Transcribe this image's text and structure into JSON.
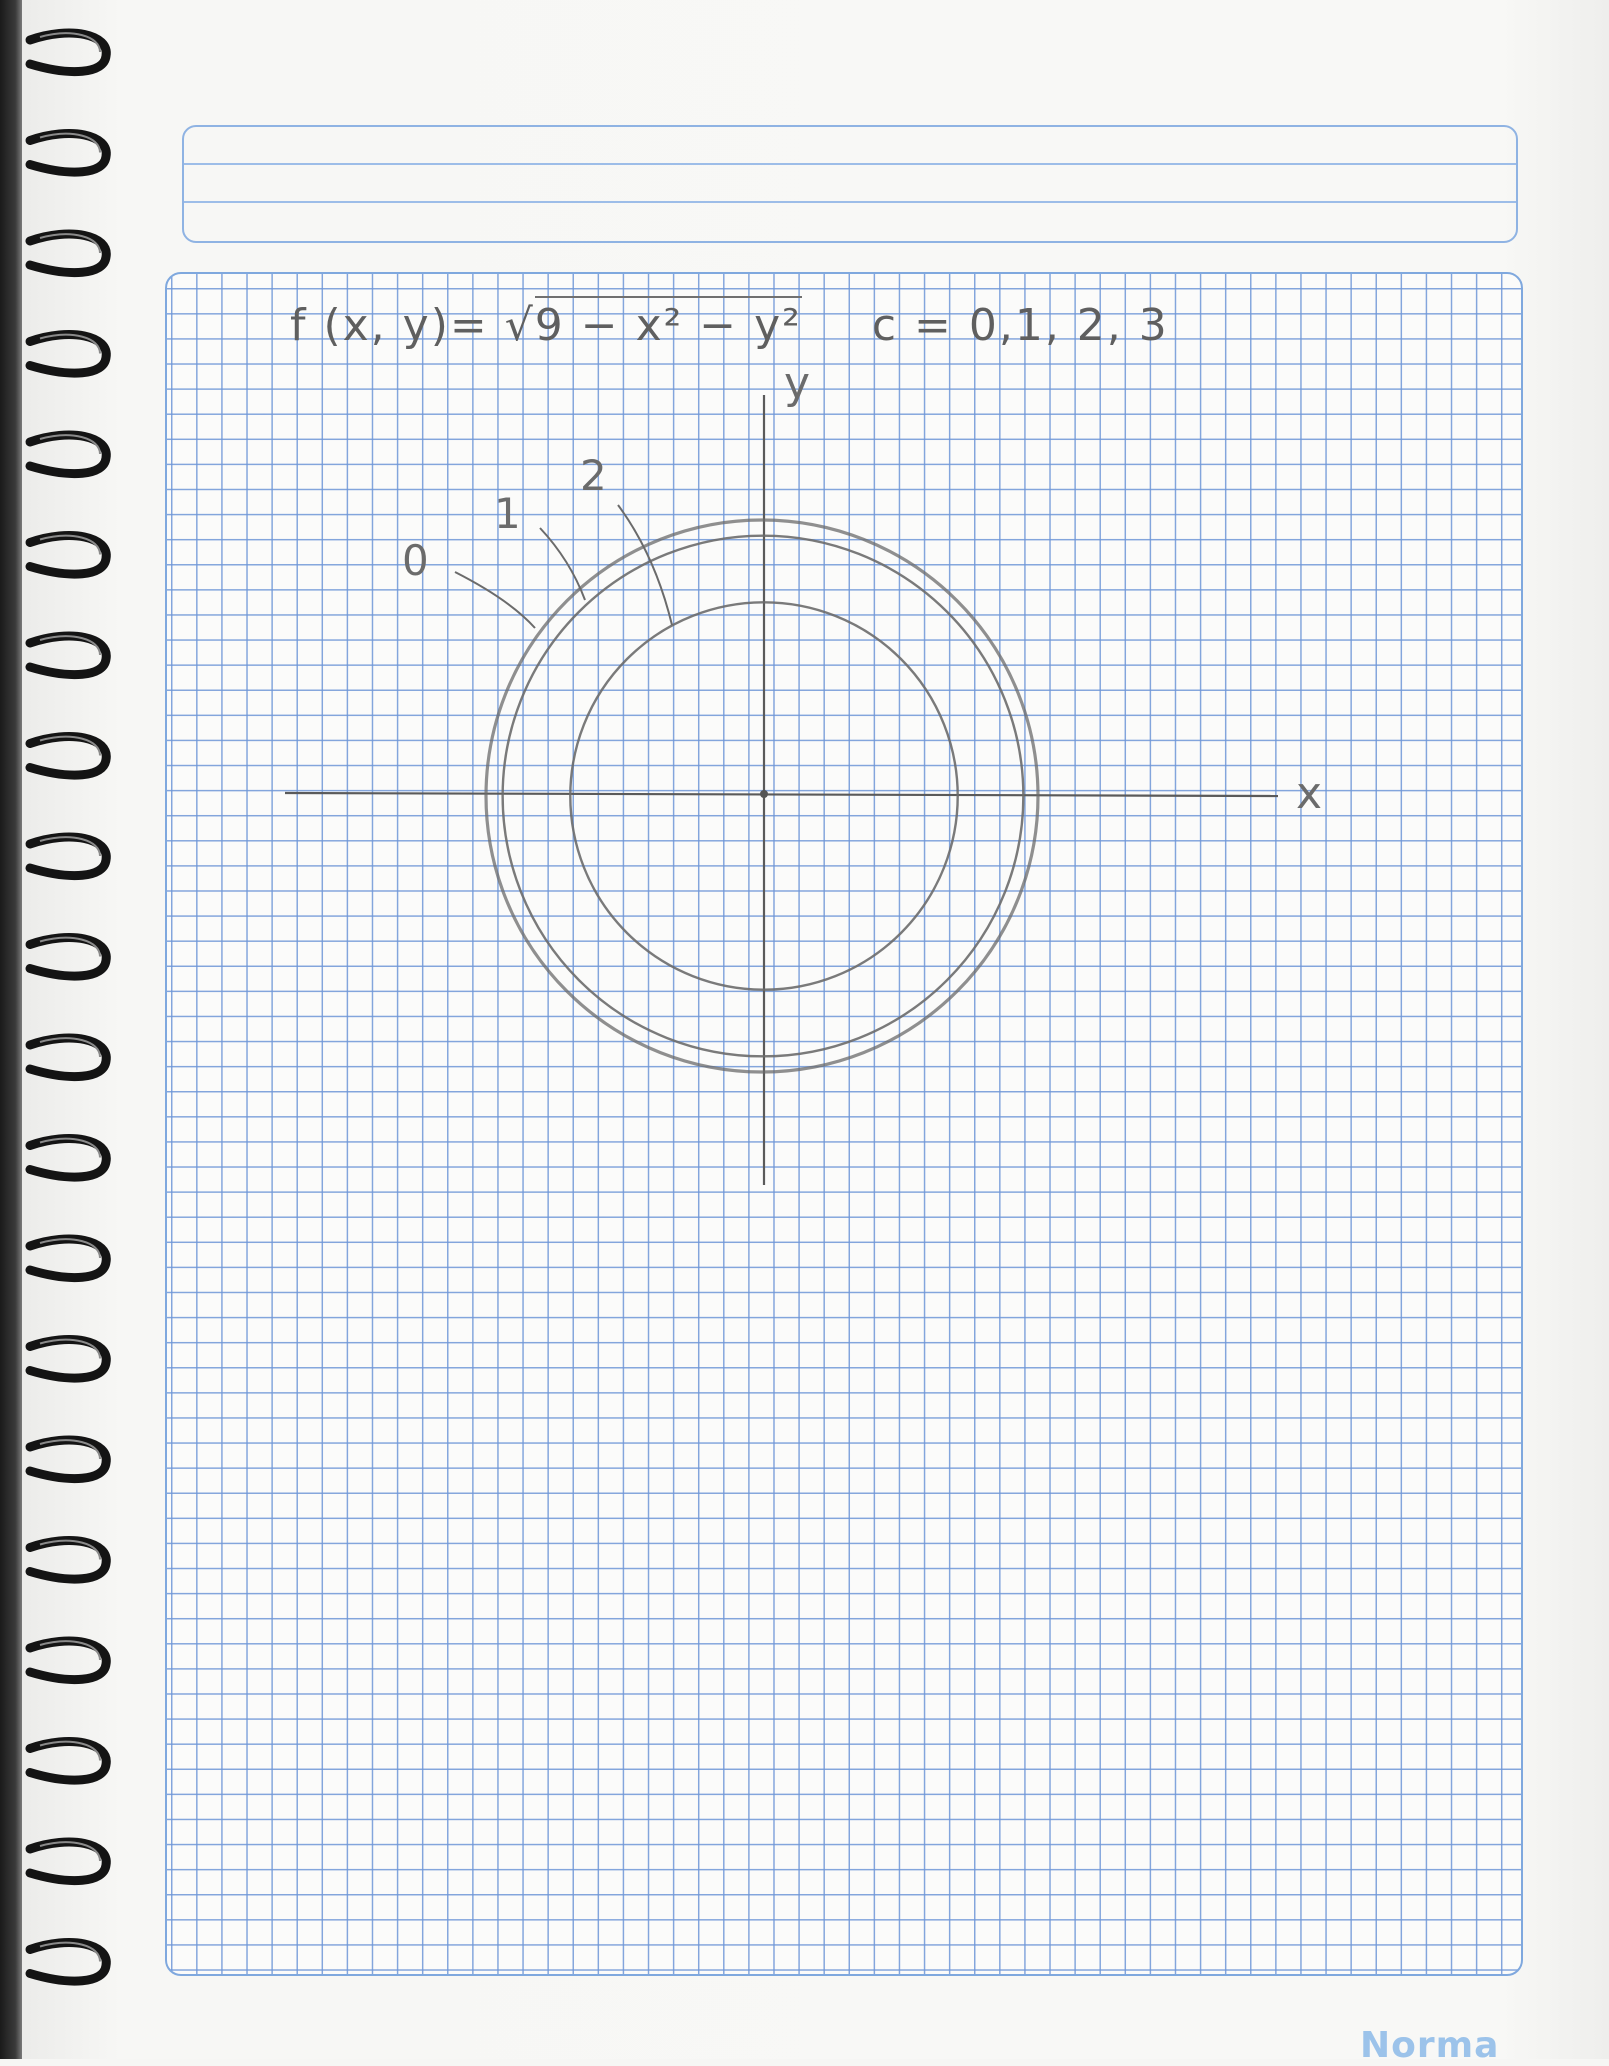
{
  "notebook": {
    "brand": "Norma"
  },
  "worksheet": {
    "function_label": "f (x, y)=",
    "radical_prefix": "√",
    "radicand": "9 − x² − y²",
    "c_values": "c = 0,1, 2, 3"
  },
  "graph": {
    "x_axis_label": "x",
    "y_axis_label": "y",
    "level_labels": [
      "0",
      "1",
      "2"
    ],
    "level_curves": [
      {
        "c": 0,
        "radius": 3
      },
      {
        "c": 1,
        "radius": 2.83
      },
      {
        "c": 2,
        "radius": 2.24
      }
    ],
    "colors": {
      "pencil": "#6b6b6b",
      "grid": "#6e96d7"
    }
  }
}
